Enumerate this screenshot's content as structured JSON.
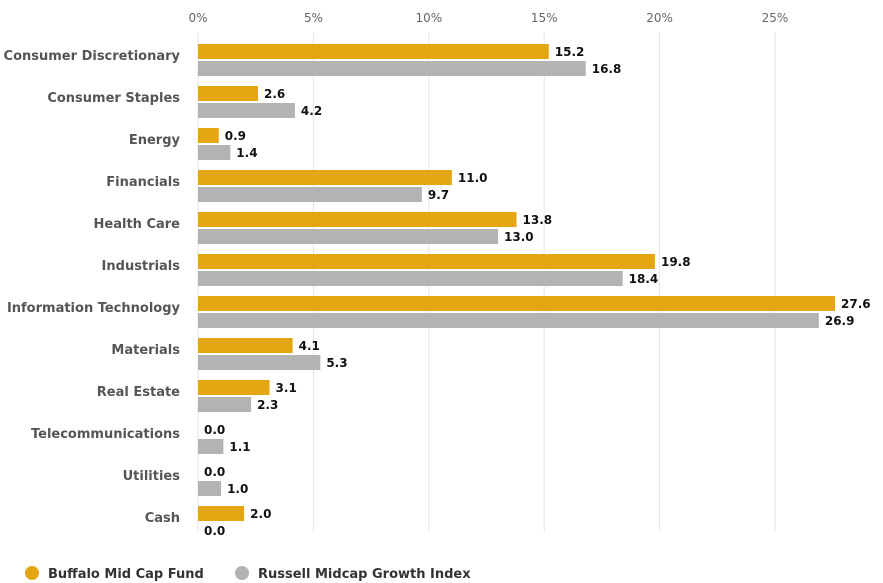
{
  "chart_data": {
    "type": "bar",
    "orientation": "horizontal",
    "categories": [
      "Consumer Discretionary",
      "Consumer Staples",
      "Energy",
      "Financials",
      "Health Care",
      "Industrials",
      "Information Technology",
      "Materials",
      "Real Estate",
      "Telecommunications",
      "Utilities",
      "Cash"
    ],
    "series": [
      {
        "name": "Buffalo Mid Cap Fund",
        "color": "#e5a613",
        "values": [
          15.2,
          2.6,
          0.9,
          11.0,
          13.8,
          19.8,
          27.6,
          4.1,
          3.1,
          0.0,
          0.0,
          2.0
        ]
      },
      {
        "name": "Russell Midcap Growth Index",
        "color": "#b3b3b3",
        "values": [
          16.8,
          4.2,
          1.4,
          9.7,
          13.0,
          18.4,
          26.9,
          5.3,
          2.3,
          1.1,
          1.0,
          0.0
        ]
      }
    ],
    "value_axis": {
      "min": 0,
      "max": 27.6,
      "ticks": [
        0,
        5,
        10,
        15,
        20,
        25
      ],
      "tick_labels": [
        "0%",
        "5%",
        "10%",
        "15%",
        "20%",
        "25%"
      ],
      "position": "top"
    },
    "grid": true,
    "legend": "bottom-left",
    "title": "",
    "xlabel": "",
    "ylabel": ""
  }
}
